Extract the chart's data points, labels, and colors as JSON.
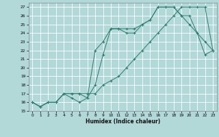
{
  "xlabel": "Humidex (Indice chaleur)",
  "bg_color": "#b2d8d8",
  "grid_color": "#ffffff",
  "line_color": "#2a7a6a",
  "xlim": [
    -0.5,
    23.5
  ],
  "ylim": [
    15,
    27.5
  ],
  "xticks": [
    0,
    1,
    2,
    3,
    4,
    5,
    6,
    7,
    8,
    9,
    10,
    11,
    12,
    13,
    14,
    15,
    16,
    17,
    18,
    19,
    20,
    21,
    22,
    23
  ],
  "yticks": [
    15,
    16,
    17,
    18,
    19,
    20,
    21,
    22,
    23,
    24,
    25,
    26,
    27
  ],
  "line1_x": [
    0,
    1,
    2,
    3,
    4,
    5,
    6,
    7,
    8,
    9,
    10,
    11,
    12,
    13,
    14,
    15,
    16,
    17,
    18,
    19,
    20,
    21,
    22,
    23
  ],
  "line1_y": [
    16,
    15.5,
    16,
    16,
    17,
    16.5,
    16,
    16.5,
    18,
    21.5,
    24.5,
    24.5,
    24,
    24,
    25,
    25.5,
    27,
    27,
    27,
    26,
    25,
    24,
    21.5,
    22
  ],
  "line2_x": [
    0,
    1,
    2,
    3,
    4,
    5,
    6,
    7,
    8,
    9,
    10,
    11,
    12,
    13,
    14,
    15,
    16,
    17,
    18,
    19,
    20,
    21,
    22,
    23
  ],
  "line2_y": [
    16,
    15.5,
    16,
    16,
    17,
    17,
    17,
    16.5,
    22,
    23,
    24.5,
    24.5,
    24.5,
    24.5,
    25,
    25.5,
    27,
    27,
    27,
    26,
    26,
    24,
    23,
    22
  ],
  "line3_x": [
    0,
    1,
    2,
    3,
    4,
    5,
    6,
    7,
    8,
    9,
    10,
    11,
    12,
    13,
    14,
    15,
    16,
    17,
    18,
    19,
    20,
    21,
    22,
    23
  ],
  "line3_y": [
    16,
    15.5,
    16,
    16,
    17,
    17,
    17,
    17,
    17,
    18,
    18.5,
    19,
    20,
    21,
    22,
    23,
    24,
    25,
    26,
    27,
    27,
    27,
    27,
    22
  ]
}
